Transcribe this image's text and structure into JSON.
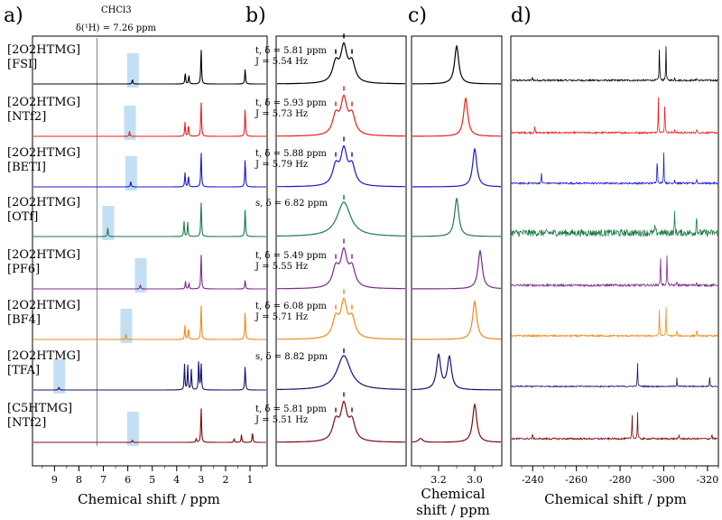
{
  "figure": {
    "panel_labels": [
      "a)",
      "b)",
      "c)",
      "d)"
    ],
    "solvent": "CHCl3",
    "solvent_ref": "δ(¹H) = 7.26 ppm",
    "xlabel_a": "Chemical shift / ppm",
    "xlabel_c_line1": "Chemical",
    "xlabel_c_line2": "shift / ppm",
    "xlabel_d": "Chemical shift / ppm"
  },
  "colors": [
    "#000000",
    "#e8201c",
    "#1a1ad0",
    "#1e7a4a",
    "#7a2a8c",
    "#f08a1a",
    "#14146e",
    "#7a0e0e"
  ],
  "chart_data": [
    {
      "type": "line",
      "panel": "a",
      "xlabel": "Chemical shift / ppm",
      "xlim": [
        9.9,
        0.3
      ],
      "xticks": [
        9,
        8,
        7,
        6,
        5,
        4,
        3,
        2,
        1
      ],
      "reference_line_ppm": 7.26,
      "series": [
        {
          "name": "[2O2HTMG][FSI]",
          "label1": "[2O2HTMG]",
          "label2": "[FSI]",
          "highlight_ppm": 5.81,
          "peaks": [
            [
              5.81,
              0.18
            ],
            [
              3.65,
              0.45
            ],
            [
              3.5,
              0.35
            ],
            [
              3.0,
              1.4
            ],
            [
              1.2,
              0.6
            ]
          ]
        },
        {
          "name": "[2O2HTMG][NTf2]",
          "label1": "[2O2HTMG]",
          "label2": "[NTf2]",
          "highlight_ppm": 5.93,
          "peaks": [
            [
              5.93,
              0.2
            ],
            [
              3.66,
              0.55
            ],
            [
              3.52,
              0.45
            ],
            [
              3.0,
              1.4
            ],
            [
              1.2,
              1.1
            ]
          ]
        },
        {
          "name": "[2O2HTMG][BETI]",
          "label1": "[2O2HTMG]",
          "label2": "[BETI]",
          "highlight_ppm": 5.88,
          "peaks": [
            [
              5.88,
              0.22
            ],
            [
              3.66,
              0.55
            ],
            [
              3.52,
              0.45
            ],
            [
              3.0,
              1.4
            ],
            [
              1.2,
              1.1
            ]
          ]
        },
        {
          "name": "[2O2HTMG][OTf]",
          "label1": "[2O2HTMG]",
          "label2": "[OTf]",
          "highlight_ppm": 6.82,
          "peaks": [
            [
              6.82,
              0.35
            ],
            [
              3.7,
              0.6
            ],
            [
              3.55,
              0.55
            ],
            [
              3.0,
              1.4
            ],
            [
              1.2,
              1.1
            ]
          ]
        },
        {
          "name": "[2O2HTMG][PF6]",
          "label1": "[2O2HTMG]",
          "label2": "[PF6]",
          "highlight_ppm": 5.49,
          "peaks": [
            [
              5.49,
              0.16
            ],
            [
              3.64,
              0.3
            ],
            [
              3.5,
              0.22
            ],
            [
              3.0,
              1.4
            ],
            [
              1.2,
              0.35
            ]
          ]
        },
        {
          "name": "[2O2HTMG][BF4]",
          "label1": "[2O2HTMG]",
          "label2": "[BF4]",
          "highlight_ppm": 6.08,
          "peaks": [
            [
              6.08,
              0.22
            ],
            [
              3.66,
              0.55
            ],
            [
              3.52,
              0.45
            ],
            [
              3.0,
              1.4
            ],
            [
              1.2,
              1.1
            ]
          ]
        },
        {
          "name": "[2O2HTMG][TFA]",
          "label1": "[2O2HTMG]",
          "label2": "[TFA]",
          "highlight_ppm": 8.82,
          "peaks": [
            [
              8.82,
              0.12
            ],
            [
              3.68,
              1.0
            ],
            [
              3.55,
              0.95
            ],
            [
              3.4,
              0.8
            ],
            [
              3.1,
              1.2
            ],
            [
              3.0,
              1.05
            ],
            [
              1.2,
              0.95
            ]
          ]
        },
        {
          "name": "[C5HTMG][NTf2]",
          "label1": "[C5HTMG]",
          "label2": "[NTf2]",
          "highlight_ppm": 5.81,
          "peaks": [
            [
              5.81,
              0.1
            ],
            [
              3.2,
              0.15
            ],
            [
              3.0,
              1.4
            ],
            [
              1.65,
              0.15
            ],
            [
              1.35,
              0.3
            ],
            [
              0.9,
              0.4
            ]
          ]
        }
      ]
    },
    {
      "type": "line",
      "panel": "b",
      "series": [
        {
          "multiplicity": "t",
          "delta_text": "δ = 5.81 ppm",
          "J_text": "J = 5.54 Hz",
          "shape": "t"
        },
        {
          "multiplicity": "t",
          "delta_text": "δ = 5.93 ppm",
          "J_text": "J = 5.73 Hz",
          "shape": "t"
        },
        {
          "multiplicity": "t",
          "delta_text": "δ = 5.88 ppm",
          "J_text": "J = 5.79 Hz",
          "shape": "t"
        },
        {
          "multiplicity": "s",
          "delta_text": "δ = 6.82 ppm",
          "J_text": "",
          "shape": "s"
        },
        {
          "multiplicity": "t",
          "delta_text": "δ = 5.49 ppm",
          "J_text": "J = 5.55 Hz",
          "shape": "t"
        },
        {
          "multiplicity": "t",
          "delta_text": "δ = 6.08 ppm",
          "J_text": "J = 5.71 Hz",
          "shape": "t"
        },
        {
          "multiplicity": "s",
          "delta_text": "δ = 8.82 ppm",
          "J_text": "",
          "shape": "s"
        },
        {
          "multiplicity": "t",
          "delta_text": "δ = 5.81 ppm",
          "J_text": "J = 5.51 Hz",
          "shape": "t"
        }
      ]
    },
    {
      "type": "line",
      "panel": "c",
      "xlabel": "Chemical shift / ppm",
      "xlim": [
        3.35,
        2.85
      ],
      "xticks": [
        3.2,
        3.0
      ],
      "series": [
        {
          "peaks": [
            [
              3.1,
              1.0
            ]
          ]
        },
        {
          "peaks": [
            [
              3.05,
              1.0
            ]
          ]
        },
        {
          "peaks": [
            [
              3.0,
              1.0
            ]
          ]
        },
        {
          "peaks": [
            [
              3.1,
              1.0
            ]
          ]
        },
        {
          "peaks": [
            [
              2.97,
              1.0
            ]
          ]
        },
        {
          "peaks": [
            [
              3.0,
              1.0
            ]
          ]
        },
        {
          "peaks": [
            [
              3.2,
              0.9
            ],
            [
              3.14,
              0.85
            ]
          ]
        },
        {
          "peaks": [
            [
              3.0,
              1.0
            ],
            [
              3.3,
              0.1
            ]
          ]
        }
      ]
    },
    {
      "type": "line",
      "panel": "d",
      "xlabel": "Chemical shift / ppm",
      "xlim": [
        -230,
        -325
      ],
      "xticks": [
        -240,
        -260,
        -280,
        -300,
        -320
      ],
      "series": [
        {
          "noise": 0.03,
          "peaks": [
            [
              -298,
              1.3
            ],
            [
              -301,
              1.3
            ],
            [
              -240,
              0.15
            ],
            [
              -305,
              0.1
            ],
            [
              -315,
              0.1
            ]
          ]
        },
        {
          "noise": 0.03,
          "peaks": [
            [
              -297.5,
              1.3
            ],
            [
              -300.5,
              1.3
            ],
            [
              -241,
              0.25
            ],
            [
              -305,
              0.12
            ],
            [
              -315,
              0.15
            ]
          ]
        },
        {
          "noise": 0.03,
          "peaks": [
            [
              -297,
              1.1
            ],
            [
              -300,
              1.1
            ],
            [
              -244,
              0.4
            ],
            [
              -305,
              0.15
            ],
            [
              -315,
              0.2
            ]
          ]
        },
        {
          "noise": 0.12,
          "peaks": [
            [
              -296,
              0.35
            ],
            [
              -305,
              0.8
            ],
            [
              -315,
              0.8
            ]
          ]
        },
        {
          "noise": 0.04,
          "peaks": [
            [
              -298.5,
              1.2
            ],
            [
              -301.5,
              1.2
            ],
            [
              -306,
              0.15
            ],
            [
              -315,
              0.15
            ]
          ]
        },
        {
          "noise": 0.03,
          "peaks": [
            [
              -298,
              1.1
            ],
            [
              -301,
              1.1
            ],
            [
              -306,
              0.2
            ],
            [
              -315,
              0.25
            ]
          ]
        },
        {
          "noise": 0.02,
          "peaks": [
            [
              -288,
              0.85
            ],
            [
              -306,
              0.3
            ],
            [
              -321,
              0.45
            ]
          ]
        },
        {
          "noise": 0.03,
          "peaks": [
            [
              -285.5,
              1.0
            ],
            [
              -288,
              1.0
            ],
            [
              -240,
              0.2
            ],
            [
              -307,
              0.15
            ],
            [
              -322,
              0.2
            ]
          ]
        }
      ]
    }
  ]
}
